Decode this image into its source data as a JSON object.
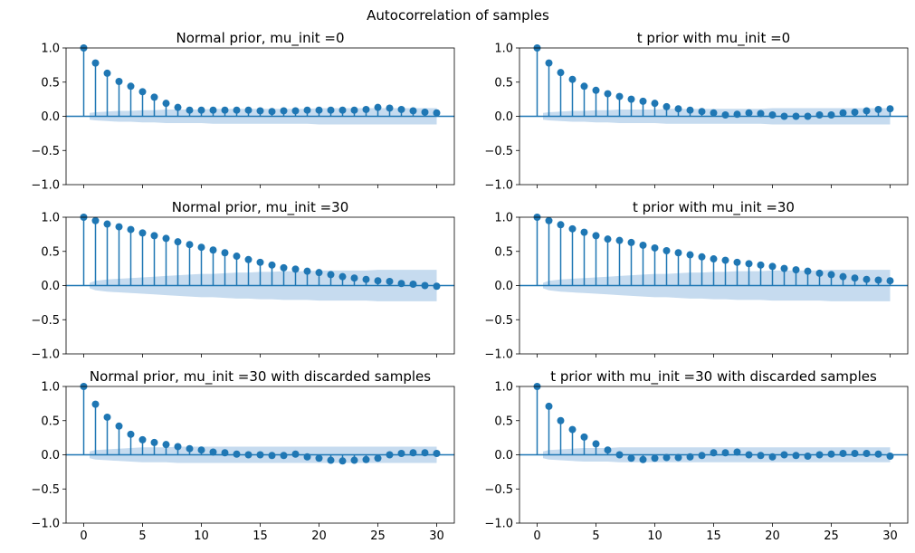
{
  "figure": {
    "suptitle": "Autocorrelation of samples"
  },
  "colors": {
    "stem": "#1f77b4",
    "band": "#c6dbef",
    "axis": "#000000"
  },
  "chart_data": [
    {
      "type": "stem",
      "title": "Normal prior, mu_init =0",
      "xlim": [
        -1.5,
        31.5
      ],
      "ylim": [
        -1,
        1
      ],
      "yticks": [
        1.0,
        0.5,
        0.0,
        -0.5,
        -1.0
      ],
      "ytick_labels": [
        "1.0",
        "0.5",
        "0.0",
        "−0.5",
        "−1.0"
      ],
      "xticks": [
        0,
        5,
        10,
        15,
        20,
        25,
        30
      ],
      "xtick_labels": [
        "0",
        "5",
        "10",
        "15",
        "20",
        "25",
        "30"
      ],
      "show_xtick_labels": false,
      "lags": [
        0,
        1,
        2,
        3,
        4,
        5,
        6,
        7,
        8,
        9,
        10,
        11,
        12,
        13,
        14,
        15,
        16,
        17,
        18,
        19,
        20,
        21,
        22,
        23,
        24,
        25,
        26,
        27,
        28,
        29,
        30
      ],
      "values": [
        1.0,
        0.78,
        0.63,
        0.51,
        0.44,
        0.36,
        0.28,
        0.19,
        0.13,
        0.09,
        0.09,
        0.09,
        0.09,
        0.09,
        0.09,
        0.08,
        0.07,
        0.08,
        0.08,
        0.09,
        0.09,
        0.09,
        0.09,
        0.09,
        0.1,
        0.13,
        0.12,
        0.1,
        0.08,
        0.06,
        0.05
      ],
      "conf_upper": [
        0.05,
        0.06,
        0.07,
        0.08,
        0.08,
        0.09,
        0.09,
        0.1,
        0.1,
        0.1,
        0.1,
        0.11,
        0.11,
        0.11,
        0.11,
        0.11,
        0.11,
        0.11,
        0.11,
        0.11,
        0.12,
        0.12,
        0.12,
        0.12,
        0.12,
        0.12,
        0.12,
        0.12,
        0.12,
        0.12,
        0.12
      ]
    },
    {
      "type": "stem",
      "title": "t prior with mu_init =0",
      "xlim": [
        -1.5,
        31.5
      ],
      "ylim": [
        -1,
        1
      ],
      "yticks": [
        1.0,
        0.5,
        0.0,
        -0.5,
        -1.0
      ],
      "ytick_labels": [
        "1.0",
        "0.5",
        "0.0",
        "−0.5",
        "−1.0"
      ],
      "xticks": [
        0,
        5,
        10,
        15,
        20,
        25,
        30
      ],
      "xtick_labels": [
        "0",
        "5",
        "10",
        "15",
        "20",
        "25",
        "30"
      ],
      "show_xtick_labels": false,
      "lags": [
        0,
        1,
        2,
        3,
        4,
        5,
        6,
        7,
        8,
        9,
        10,
        11,
        12,
        13,
        14,
        15,
        16,
        17,
        18,
        19,
        20,
        21,
        22,
        23,
        24,
        25,
        26,
        27,
        28,
        29,
        30
      ],
      "values": [
        1.0,
        0.78,
        0.64,
        0.54,
        0.44,
        0.38,
        0.33,
        0.29,
        0.25,
        0.22,
        0.19,
        0.14,
        0.11,
        0.09,
        0.07,
        0.05,
        0.02,
        0.03,
        0.05,
        0.04,
        0.02,
        0.0,
        0.0,
        0.0,
        0.02,
        0.02,
        0.05,
        0.06,
        0.08,
        0.1,
        0.11
      ],
      "conf_upper": [
        0.05,
        0.06,
        0.07,
        0.08,
        0.08,
        0.09,
        0.09,
        0.1,
        0.1,
        0.1,
        0.1,
        0.11,
        0.11,
        0.11,
        0.11,
        0.11,
        0.11,
        0.11,
        0.11,
        0.11,
        0.12,
        0.12,
        0.12,
        0.12,
        0.12,
        0.12,
        0.12,
        0.12,
        0.12,
        0.12,
        0.12
      ]
    },
    {
      "type": "stem",
      "title": "Normal prior, mu_init =30",
      "xlim": [
        -1.5,
        31.5
      ],
      "ylim": [
        -1,
        1
      ],
      "yticks": [
        1.0,
        0.5,
        0.0,
        -0.5,
        -1.0
      ],
      "ytick_labels": [
        "1.0",
        "0.5",
        "0.0",
        "−0.5",
        "−1.0"
      ],
      "xticks": [
        0,
        5,
        10,
        15,
        20,
        25,
        30
      ],
      "xtick_labels": [
        "0",
        "5",
        "10",
        "15",
        "20",
        "25",
        "30"
      ],
      "show_xtick_labels": false,
      "lags": [
        0,
        1,
        2,
        3,
        4,
        5,
        6,
        7,
        8,
        9,
        10,
        11,
        12,
        13,
        14,
        15,
        16,
        17,
        18,
        19,
        20,
        21,
        22,
        23,
        24,
        25,
        26,
        27,
        28,
        29,
        30
      ],
      "values": [
        1.0,
        0.95,
        0.9,
        0.86,
        0.82,
        0.77,
        0.73,
        0.69,
        0.64,
        0.6,
        0.56,
        0.52,
        0.48,
        0.43,
        0.38,
        0.34,
        0.3,
        0.26,
        0.24,
        0.21,
        0.19,
        0.16,
        0.13,
        0.11,
        0.09,
        0.07,
        0.06,
        0.03,
        0.02,
        0.0,
        -0.01
      ],
      "conf_upper": [
        0.04,
        0.07,
        0.09,
        0.1,
        0.11,
        0.12,
        0.13,
        0.14,
        0.15,
        0.16,
        0.17,
        0.17,
        0.18,
        0.19,
        0.19,
        0.2,
        0.2,
        0.21,
        0.21,
        0.21,
        0.22,
        0.22,
        0.22,
        0.22,
        0.22,
        0.23,
        0.23,
        0.23,
        0.23,
        0.23,
        0.23
      ]
    },
    {
      "type": "stem",
      "title": "t prior with mu_init =30",
      "xlim": [
        -1.5,
        31.5
      ],
      "ylim": [
        -1,
        1
      ],
      "yticks": [
        1.0,
        0.5,
        0.0,
        -0.5,
        -1.0
      ],
      "ytick_labels": [
        "1.0",
        "0.5",
        "0.0",
        "−0.5",
        "−1.0"
      ],
      "xticks": [
        0,
        5,
        10,
        15,
        20,
        25,
        30
      ],
      "xtick_labels": [
        "0",
        "5",
        "10",
        "15",
        "20",
        "25",
        "30"
      ],
      "show_xtick_labels": false,
      "lags": [
        0,
        1,
        2,
        3,
        4,
        5,
        6,
        7,
        8,
        9,
        10,
        11,
        12,
        13,
        14,
        15,
        16,
        17,
        18,
        19,
        20,
        21,
        22,
        23,
        24,
        25,
        26,
        27,
        28,
        29,
        30
      ],
      "values": [
        1.0,
        0.95,
        0.89,
        0.83,
        0.78,
        0.73,
        0.68,
        0.66,
        0.63,
        0.59,
        0.55,
        0.51,
        0.48,
        0.45,
        0.42,
        0.39,
        0.37,
        0.34,
        0.32,
        0.3,
        0.28,
        0.25,
        0.23,
        0.21,
        0.18,
        0.16,
        0.13,
        0.11,
        0.09,
        0.08,
        0.07
      ],
      "conf_upper": [
        0.04,
        0.07,
        0.09,
        0.1,
        0.11,
        0.12,
        0.13,
        0.14,
        0.15,
        0.16,
        0.17,
        0.17,
        0.18,
        0.19,
        0.19,
        0.2,
        0.2,
        0.21,
        0.21,
        0.21,
        0.22,
        0.22,
        0.22,
        0.22,
        0.22,
        0.23,
        0.23,
        0.23,
        0.23,
        0.23,
        0.23
      ]
    },
    {
      "type": "stem",
      "title": "Normal prior, mu_init =30 with discarded samples",
      "xlim": [
        -1.5,
        31.5
      ],
      "ylim": [
        -1,
        1
      ],
      "yticks": [
        1.0,
        0.5,
        0.0,
        -0.5,
        -1.0
      ],
      "ytick_labels": [
        "1.0",
        "0.5",
        "0.0",
        "−0.5",
        "−1.0"
      ],
      "xticks": [
        0,
        5,
        10,
        15,
        20,
        25,
        30
      ],
      "xtick_labels": [
        "0",
        "5",
        "10",
        "15",
        "20",
        "25",
        "30"
      ],
      "show_xtick_labels": true,
      "lags": [
        0,
        1,
        2,
        3,
        4,
        5,
        6,
        7,
        8,
        9,
        10,
        11,
        12,
        13,
        14,
        15,
        16,
        17,
        18,
        19,
        20,
        21,
        22,
        23,
        24,
        25,
        26,
        27,
        28,
        29,
        30
      ],
      "values": [
        1.0,
        0.74,
        0.55,
        0.42,
        0.3,
        0.22,
        0.18,
        0.15,
        0.12,
        0.09,
        0.07,
        0.04,
        0.03,
        0.01,
        0.0,
        0.0,
        -0.01,
        -0.01,
        0.01,
        -0.03,
        -0.05,
        -0.08,
        -0.09,
        -0.08,
        -0.07,
        -0.05,
        0.0,
        0.02,
        0.03,
        0.03,
        0.02
      ],
      "conf_upper": [
        0.05,
        0.07,
        0.08,
        0.09,
        0.1,
        0.11,
        0.11,
        0.11,
        0.12,
        0.12,
        0.12,
        0.12,
        0.12,
        0.12,
        0.12,
        0.12,
        0.12,
        0.12,
        0.12,
        0.12,
        0.12,
        0.12,
        0.12,
        0.12,
        0.12,
        0.12,
        0.12,
        0.12,
        0.12,
        0.12,
        0.12
      ]
    },
    {
      "type": "stem",
      "title": "t prior with mu_init =30 with discarded samples",
      "xlim": [
        -1.5,
        31.5
      ],
      "ylim": [
        -1,
        1
      ],
      "yticks": [
        1.0,
        0.5,
        0.0,
        -0.5,
        -1.0
      ],
      "ytick_labels": [
        "1.0",
        "0.5",
        "0.0",
        "−0.5",
        "−1.0"
      ],
      "xticks": [
        0,
        5,
        10,
        15,
        20,
        25,
        30
      ],
      "xtick_labels": [
        "0",
        "5",
        "10",
        "15",
        "20",
        "25",
        "30"
      ],
      "show_xtick_labels": true,
      "lags": [
        0,
        1,
        2,
        3,
        4,
        5,
        6,
        7,
        8,
        9,
        10,
        11,
        12,
        13,
        14,
        15,
        16,
        17,
        18,
        19,
        20,
        21,
        22,
        23,
        24,
        25,
        26,
        27,
        28,
        29,
        30
      ],
      "values": [
        1.0,
        0.71,
        0.5,
        0.37,
        0.26,
        0.16,
        0.07,
        0.0,
        -0.05,
        -0.07,
        -0.05,
        -0.04,
        -0.04,
        -0.03,
        -0.01,
        0.03,
        0.03,
        0.04,
        0.0,
        -0.01,
        -0.03,
        0.0,
        -0.01,
        -0.02,
        0.0,
        0.01,
        0.02,
        0.02,
        0.02,
        0.01,
        -0.02
      ],
      "conf_upper": [
        0.05,
        0.07,
        0.08,
        0.09,
        0.1,
        0.1,
        0.1,
        0.11,
        0.11,
        0.11,
        0.11,
        0.11,
        0.11,
        0.11,
        0.11,
        0.11,
        0.11,
        0.11,
        0.11,
        0.11,
        0.11,
        0.11,
        0.11,
        0.11,
        0.11,
        0.11,
        0.11,
        0.11,
        0.11,
        0.11,
        0.11
      ]
    }
  ]
}
